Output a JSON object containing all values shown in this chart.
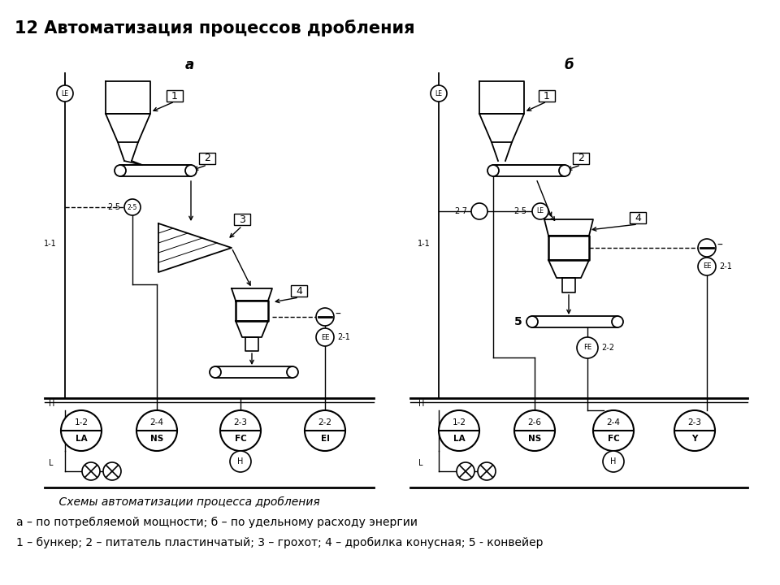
{
  "title": "12 Автоматизация процессов дробления",
  "subtitle_a": "а",
  "subtitle_b": "б",
  "caption1": "    Схемы автоматизации процесса дробления",
  "caption2": "а – по потребляемой мощности; б – по удельному расходу энергии",
  "caption3": "1 – бункер; 2 – питатель пластинчатый; 3 – грохот; 4 – дробилка конусная; 5 - конвейер",
  "bg_color": "#ffffff",
  "lc": "#000000"
}
